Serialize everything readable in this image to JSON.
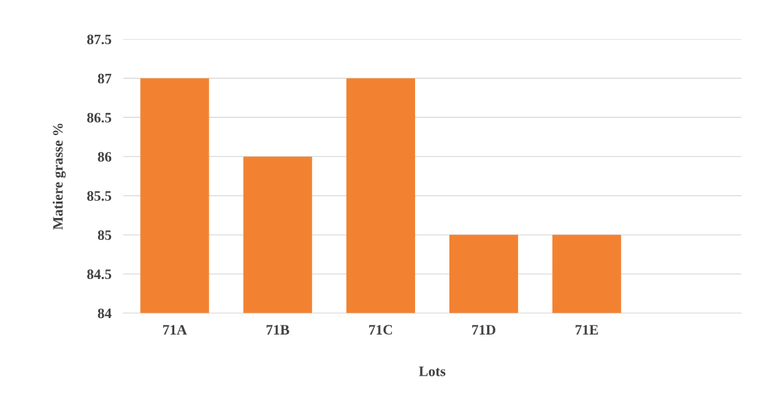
{
  "chart_data": {
    "type": "bar",
    "xlabel": "Lots",
    "ylabel": "Matiere grasse %",
    "categories": [
      "71A",
      "71B",
      "71C",
      "71D",
      "71E",
      null
    ],
    "values": [
      87,
      86,
      87,
      85,
      85,
      null
    ],
    "color": "#f28232",
    "ylim": [
      84,
      87.5
    ],
    "yticks": [
      84,
      84.5,
      85,
      85.5,
      86,
      86.5,
      87,
      87.5
    ],
    "grid": "y",
    "legend": false
  }
}
